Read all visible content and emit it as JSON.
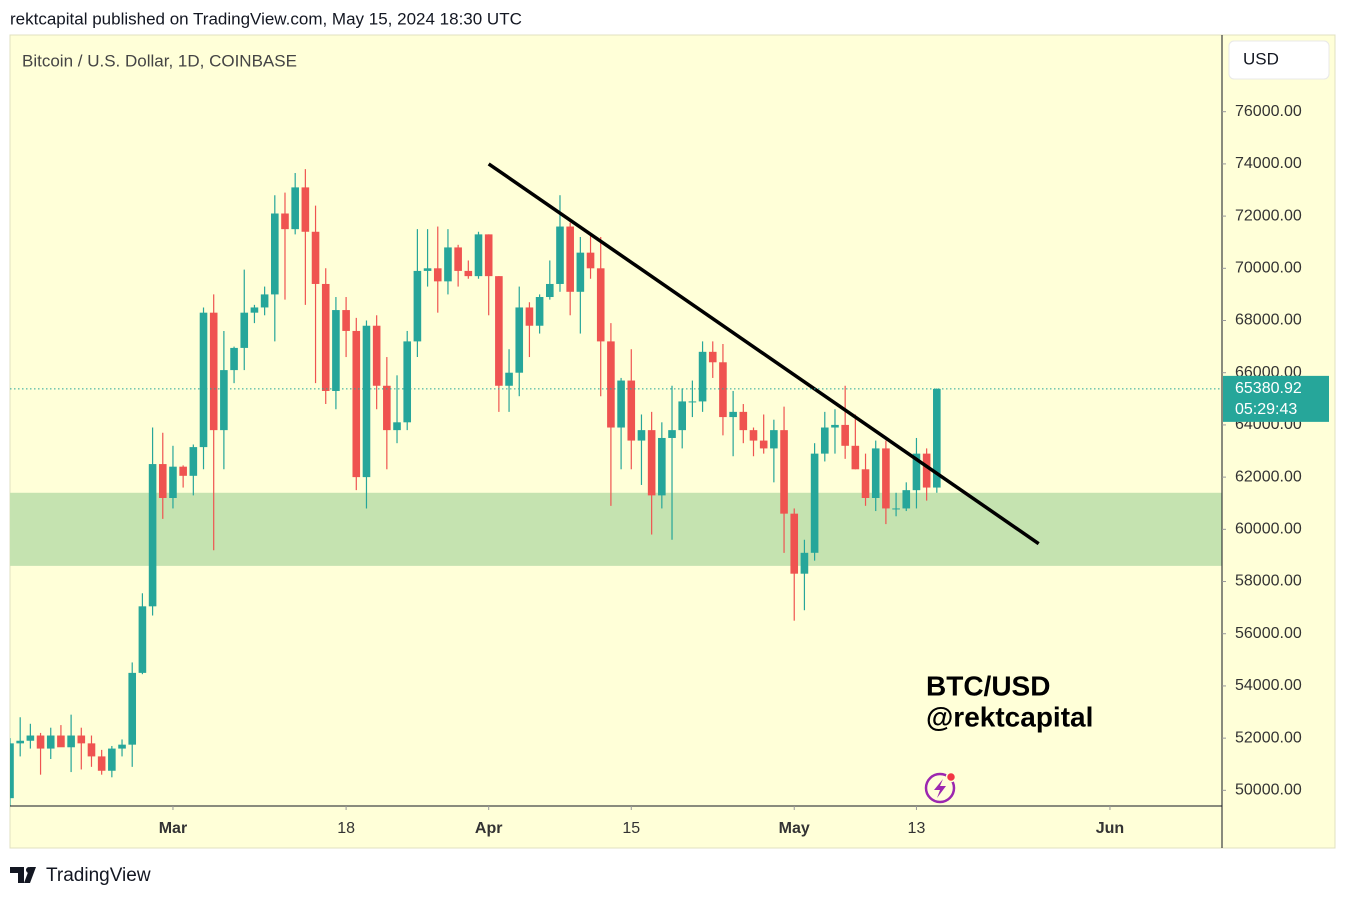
{
  "header": "rektcapital published on TradingView.com, May 15, 2024 18:30 UTC",
  "footer": "TradingView",
  "chart_data": {
    "type": "candlestick",
    "title": "Bitcoin / U.S. Dollar, 1D, COINBASE",
    "currency": "USD",
    "watermark": [
      "BTC/USD",
      "@rektcapital"
    ],
    "countdown": "05:29:43",
    "up_color": "#26a69a",
    "down_color": "#ef5350",
    "x": [
      "2024-02-14",
      "2024-02-15",
      "2024-02-16",
      "2024-02-17",
      "2024-02-18",
      "2024-02-19",
      "2024-02-20",
      "2024-02-21",
      "2024-02-22",
      "2024-02-23",
      "2024-02-24",
      "2024-02-25",
      "2024-02-26",
      "2024-02-27",
      "2024-02-28",
      "2024-02-29",
      "2024-03-01",
      "2024-03-02",
      "2024-03-03",
      "2024-03-04",
      "2024-03-05",
      "2024-03-06",
      "2024-03-07",
      "2024-03-08",
      "2024-03-09",
      "2024-03-10",
      "2024-03-11",
      "2024-03-12",
      "2024-03-13",
      "2024-03-14",
      "2024-03-15",
      "2024-03-16",
      "2024-03-17",
      "2024-03-18",
      "2024-03-19",
      "2024-03-20",
      "2024-03-21",
      "2024-03-22",
      "2024-03-23",
      "2024-03-24",
      "2024-03-25",
      "2024-03-26",
      "2024-03-27",
      "2024-03-28",
      "2024-03-29",
      "2024-03-30",
      "2024-03-31",
      "2024-04-01",
      "2024-04-02",
      "2024-04-03",
      "2024-04-04",
      "2024-04-05",
      "2024-04-06",
      "2024-04-07",
      "2024-04-08",
      "2024-04-09",
      "2024-04-10",
      "2024-04-11",
      "2024-04-12",
      "2024-04-13",
      "2024-04-14",
      "2024-04-15",
      "2024-04-16",
      "2024-04-17",
      "2024-04-18",
      "2024-04-19",
      "2024-04-20",
      "2024-04-21",
      "2024-04-22",
      "2024-04-23",
      "2024-04-24",
      "2024-04-25",
      "2024-04-26",
      "2024-04-27",
      "2024-04-28",
      "2024-04-29",
      "2024-04-30",
      "2024-05-01",
      "2024-05-02",
      "2024-05-03",
      "2024-05-04",
      "2024-05-05",
      "2024-05-06",
      "2024-05-07",
      "2024-05-08",
      "2024-05-09",
      "2024-05-10",
      "2024-05-11",
      "2024-05-12",
      "2024-05-13",
      "2024-05-14",
      "2024-05-15"
    ],
    "open": [
      49700,
      51800,
      51900,
      52100,
      51600,
      52100,
      51650,
      52100,
      51800,
      51300,
      50750,
      51600,
      51750,
      54500,
      57050,
      62500,
      61200,
      62400,
      62050,
      63150,
      68300,
      63800,
      66100,
      66950,
      68300,
      68500,
      69000,
      72100,
      71500,
      73100,
      71400,
      69400,
      65300,
      68400,
      67600,
      62000,
      67800,
      65500,
      63800,
      64100,
      67200,
      69900,
      70000,
      69500,
      70800,
      69900,
      69700,
      71300,
      69700,
      65500,
      66000,
      68500,
      67800,
      68900,
      69400,
      71600,
      69100,
      70600,
      70000,
      67200,
      63900,
      65700,
      63400,
      63800,
      61300,
      63500,
      63800,
      64900,
      64900,
      66800,
      66400,
      64300,
      64500,
      63800,
      63400,
      63100,
      63800,
      60600,
      58300,
      59100,
      62900,
      63900,
      64000,
      63200,
      62300,
      61200,
      63100,
      60800,
      60800,
      61500,
      62900,
      61600
    ],
    "high": [
      52000,
      52800,
      52550,
      52200,
      52400,
      52500,
      52900,
      52400,
      52100,
      51550,
      51700,
      51950,
      54900,
      57550,
      63900,
      63700,
      63200,
      62450,
      63250,
      68500,
      69000,
      67600,
      67000,
      69950,
      68600,
      69300,
      72800,
      72900,
      73650,
      73800,
      72400,
      70000,
      68900,
      68900,
      68100,
      68000,
      68200,
      66600,
      65900,
      67600,
      71500,
      71500,
      71600,
      71500,
      70900,
      70300,
      71400,
      71300,
      69700,
      66900,
      69300,
      68700,
      69000,
      70300,
      72800,
      71750,
      71200,
      71300,
      71200,
      67900,
      65800,
      66900,
      64400,
      64500,
      64100,
      65500,
      65400,
      65700,
      67200,
      67200,
      67100,
      65300,
      64800,
      63900,
      64400,
      64200,
      64700,
      60800,
      59600,
      63300,
      64500,
      64600,
      65500,
      64400,
      62900,
      63400,
      63400,
      61400,
      61800,
      63500,
      63100,
      65400
    ],
    "low": [
      49300,
      51300,
      51600,
      50600,
      51200,
      51700,
      50700,
      50800,
      50900,
      50600,
      50500,
      51300,
      50900,
      54450,
      56700,
      60400,
      60800,
      61600,
      61300,
      62300,
      59200,
      62300,
      65600,
      66100,
      67900,
      68200,
      67200,
      68800,
      71300,
      68600,
      65600,
      64800,
      64600,
      66600,
      61500,
      60800,
      64600,
      62300,
      63300,
      63800,
      66600,
      69300,
      68300,
      69000,
      69300,
      69600,
      69600,
      68200,
      64500,
      64500,
      65100,
      66600,
      67500,
      68800,
      69100,
      68200,
      67500,
      69600,
      65100,
      60900,
      62300,
      62300,
      61700,
      59800,
      60800,
      59600,
      63100,
      64300,
      64500,
      65800,
      63600,
      62800,
      63300,
      62800,
      62900,
      61800,
      59100,
      56500,
      56900,
      58800,
      62600,
      62900,
      62700,
      62300,
      60900,
      60700,
      60200,
      60500,
      60700,
      60800,
      61100,
      61400
    ],
    "close": [
      51800,
      51900,
      52100,
      51600,
      52100,
      51650,
      52100,
      51800,
      51300,
      50750,
      51600,
      51750,
      54500,
      57050,
      62500,
      61200,
      62400,
      62050,
      63150,
      68300,
      63800,
      66100,
      66950,
      68300,
      68500,
      69000,
      72100,
      71500,
      73100,
      71400,
      69400,
      65300,
      68400,
      67600,
      62000,
      67800,
      65500,
      63800,
      64100,
      67200,
      69900,
      70000,
      69500,
      70800,
      69900,
      69700,
      71300,
      69700,
      65500,
      66000,
      68500,
      67800,
      68900,
      69400,
      71600,
      69100,
      70600,
      70000,
      67200,
      63900,
      65700,
      63400,
      63800,
      61300,
      63500,
      63800,
      64900,
      64900,
      66800,
      66400,
      64300,
      64500,
      63800,
      63400,
      63100,
      63800,
      60600,
      58300,
      59100,
      62900,
      63900,
      64000,
      63200,
      62300,
      61200,
      63100,
      60800,
      60800,
      61500,
      62900,
      61600,
      65380.92
    ],
    "trendline": {
      "x": [
        "2024-04-01",
        "2024-05-25"
      ],
      "values": [
        74000,
        59450
      ],
      "color": "#000000"
    },
    "zone": {
      "values": [
        58600,
        61400
      ],
      "color": "#c5e3b0"
    },
    "xlim": [
      "2024-02-14",
      "2024-06-12"
    ],
    "xticks": [
      {
        "value": "2024-03-01",
        "label": "Mar"
      },
      {
        "value": "2024-03-18",
        "label": "18"
      },
      {
        "value": "2024-04-01",
        "label": "Apr"
      },
      {
        "value": "2024-04-15",
        "label": "15"
      },
      {
        "value": "2024-05-01",
        "label": "May"
      },
      {
        "value": "2024-05-13",
        "label": "13"
      },
      {
        "value": "2024-06-01",
        "label": "Jun"
      }
    ],
    "ylim": [
      49400,
      78900
    ],
    "yticks": [
      {
        "value": 50000,
        "label": "50000.00"
      },
      {
        "value": 52000,
        "label": "52000.00"
      },
      {
        "value": 54000,
        "label": "54000.00"
      },
      {
        "value": 56000,
        "label": "56000.00"
      },
      {
        "value": 58000,
        "label": "58000.00"
      },
      {
        "value": 60000,
        "label": "60000.00"
      },
      {
        "value": 62000,
        "label": "62000.00"
      },
      {
        "value": 64000,
        "label": "64000.00"
      },
      {
        "value": 66000,
        "label": "66000.00"
      },
      {
        "value": 68000,
        "label": "68000.00"
      },
      {
        "value": 70000,
        "label": "70000.00"
      },
      {
        "value": 72000,
        "label": "72000.00"
      },
      {
        "value": 74000,
        "label": "74000.00"
      },
      {
        "value": 76000,
        "label": "76000.00"
      }
    ],
    "background": "#ffffd8"
  }
}
